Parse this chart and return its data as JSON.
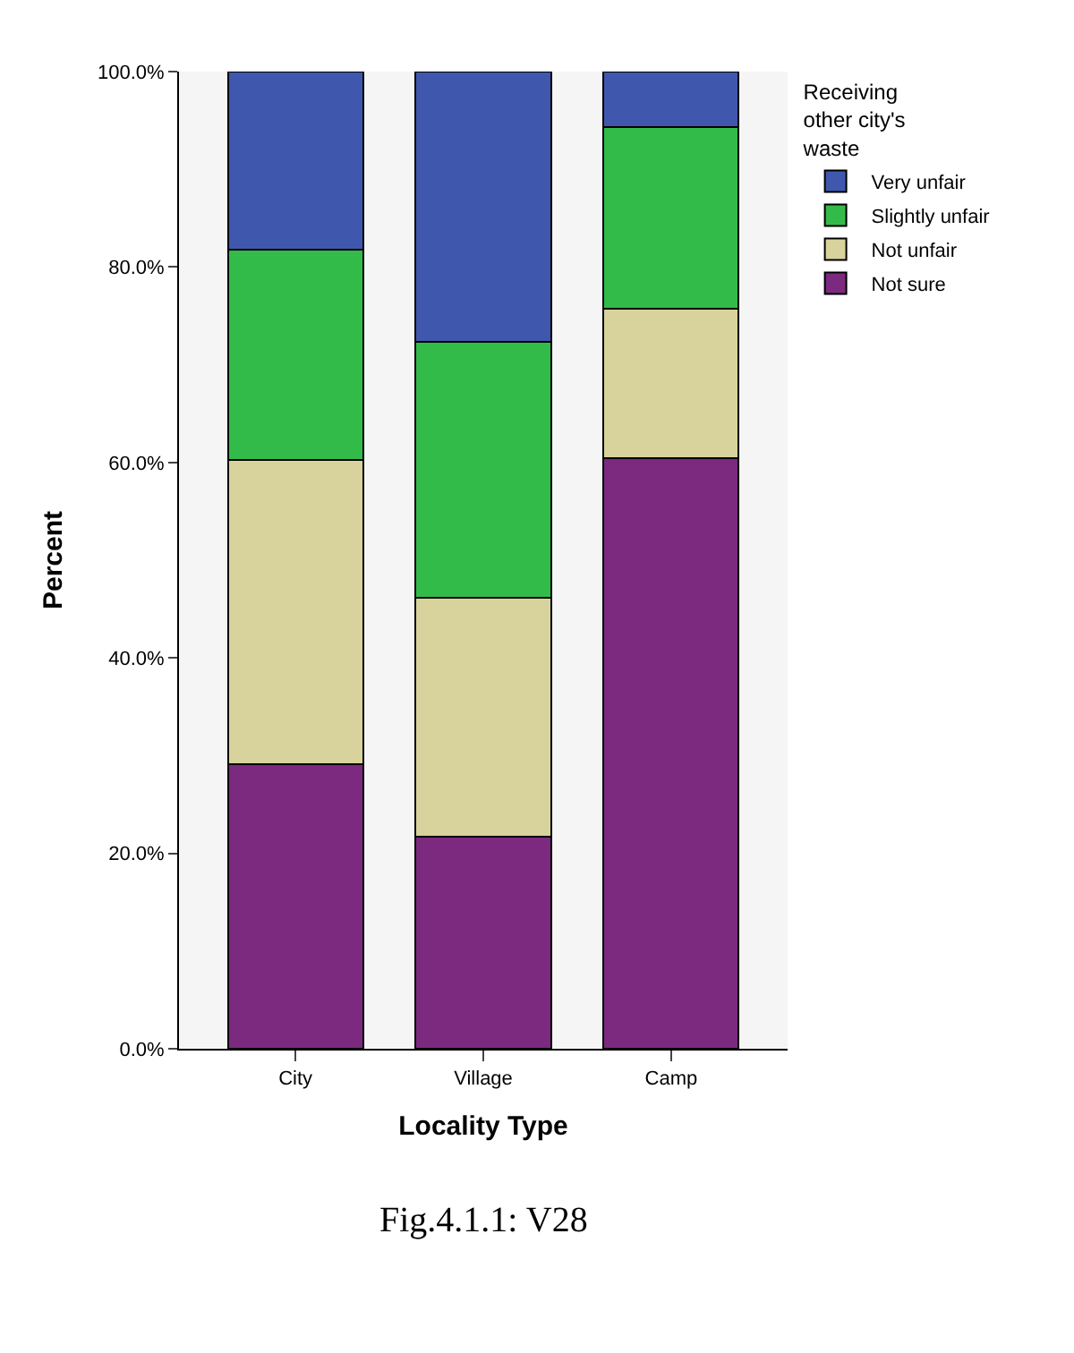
{
  "chart_data": {
    "type": "bar",
    "stacked": true,
    "xlabel": "Locality Type",
    "ylabel": "Percent",
    "legend_title": "Receiving other city's waste",
    "legend": "top right",
    "categories": [
      "City",
      "Village",
      "Camp"
    ],
    "series": [
      {
        "name": "Not sure",
        "color": "#7b2a7f",
        "values": [
          29.1,
          21.7,
          60.4
        ]
      },
      {
        "name": "Not unfair",
        "color": "#d8d39c",
        "values": [
          31.2,
          24.5,
          15.3
        ]
      },
      {
        "name": "Slightly unfair",
        "color": "#33bb4a",
        "values": [
          21.5,
          26.1,
          18.6
        ]
      },
      {
        "name": "Very unfair",
        "color": "#3f58ad",
        "values": [
          18.2,
          27.7,
          5.7
        ]
      }
    ],
    "ylim": [
      0,
      100
    ],
    "yticks": [
      {
        "value": 0,
        "label": "0.0%"
      },
      {
        "value": 20,
        "label": "20.0%"
      },
      {
        "value": 40,
        "label": "40.0%"
      },
      {
        "value": 60,
        "label": "60.0%"
      },
      {
        "value": 80,
        "label": "80.0%"
      },
      {
        "value": 100,
        "label": "100.0%"
      }
    ],
    "grid": false,
    "annotations": [
      "Fig.4.1.1: V28"
    ]
  }
}
